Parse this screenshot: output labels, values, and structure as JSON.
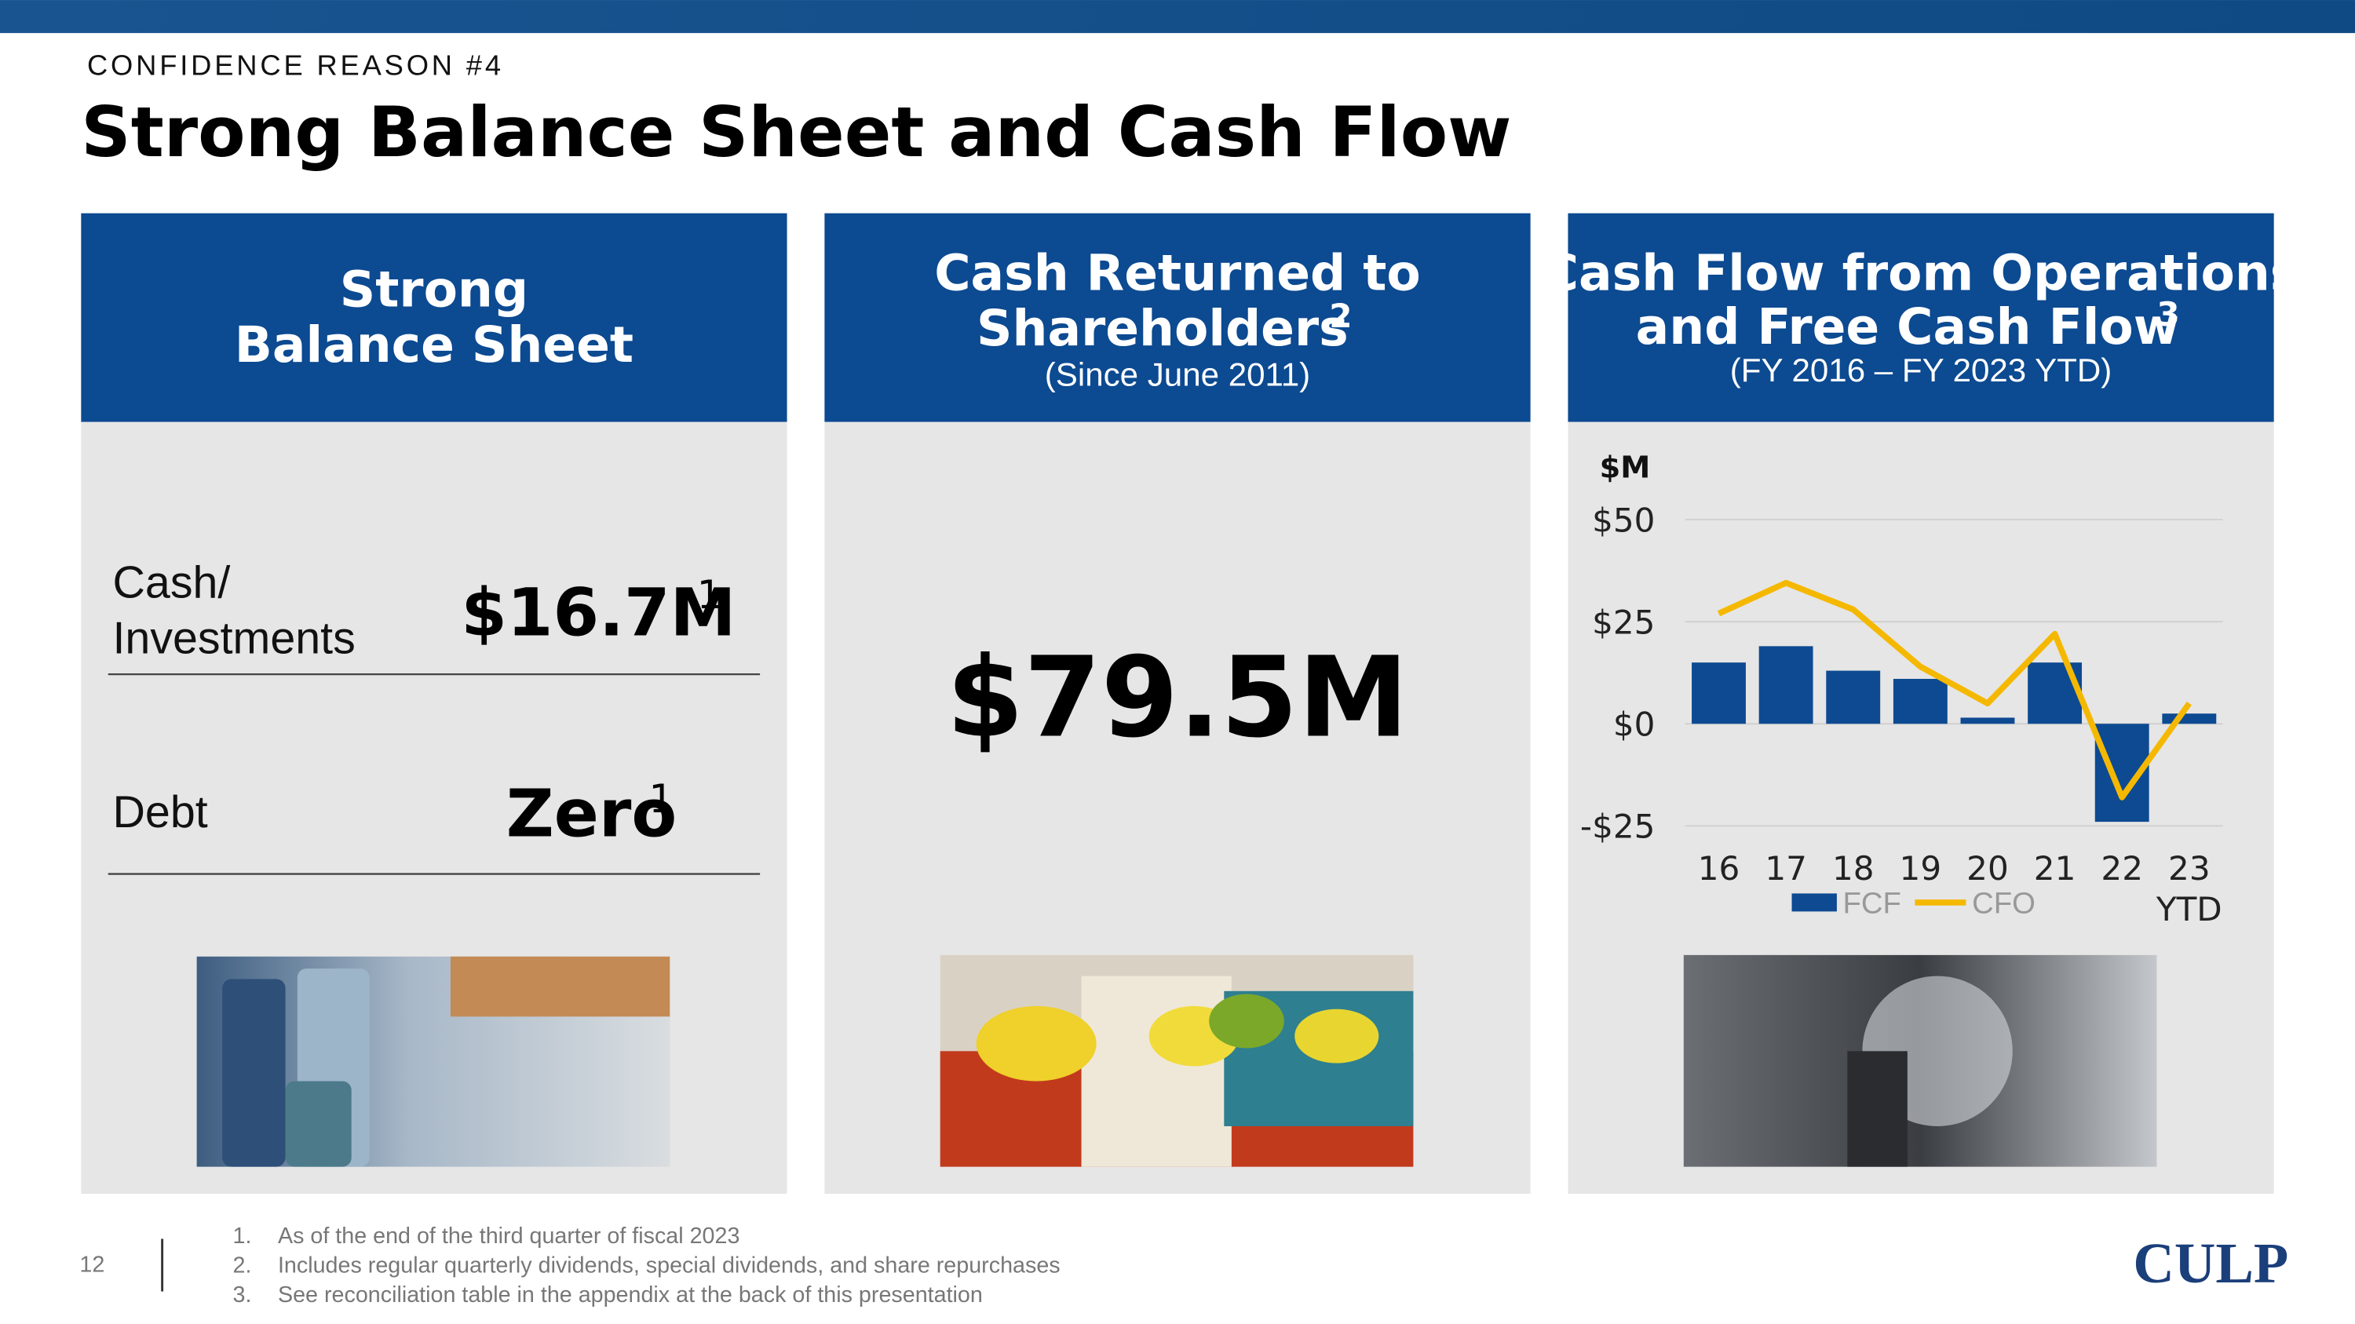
{
  "header": {
    "kicker": "CONFIDENCE REASON #4",
    "title": "Strong Balance Sheet and Cash Flow"
  },
  "panels": [
    {
      "title_lines": [
        "Strong",
        "Balance Sheet"
      ],
      "rows": [
        {
          "label_lines": [
            "Cash/",
            "Investments"
          ],
          "value": "$16.7M",
          "sup": "1"
        },
        {
          "label_lines": [
            "Debt"
          ],
          "value": "Zero",
          "sup": "1"
        }
      ]
    },
    {
      "title_lines": [
        "Cash Returned to",
        "Shareholders"
      ],
      "title_sup": "2",
      "subtitle": "(Since June 2011)",
      "value": "$79.5M"
    },
    {
      "title_lines": [
        "Cash Flow from Operations",
        "and Free Cash Flow"
      ],
      "title_sup": "3",
      "subtitle": "(FY 2016 – FY 2023 YTD)"
    }
  ],
  "chart_data": {
    "type": "bar",
    "y_label": "$M",
    "categories": [
      "16",
      "17",
      "18",
      "19",
      "20",
      "21",
      "22",
      "23 YTD"
    ],
    "series": [
      {
        "name": "FCF",
        "type": "bar",
        "color": "#0d4a91",
        "values": [
          15,
          19,
          13,
          11,
          1.5,
          15,
          -24,
          2.5
        ]
      },
      {
        "name": "CFO",
        "type": "line",
        "color": "#f5b800",
        "values": [
          27,
          34.5,
          28,
          14,
          5,
          22,
          -18,
          5
        ]
      }
    ],
    "ylim": [
      -25,
      50
    ],
    "yticks": [
      {
        "value": -25,
        "label": "-$25"
      },
      {
        "value": 0,
        "label": "$0"
      },
      {
        "value": 25,
        "label": "$25"
      },
      {
        "value": 50,
        "label": "$50"
      }
    ],
    "grid": true
  },
  "footer": {
    "page": "12",
    "notes": [
      {
        "number": "1.",
        "text": "As of the end of the third quarter of fiscal 2023"
      },
      {
        "number": "2.",
        "text": "Includes regular quarterly dividends, special dividends, and share repurchases"
      },
      {
        "number": "3.",
        "text": "See reconciliation table in the appendix at the back of this presentation"
      }
    ],
    "logo": "CULP"
  }
}
